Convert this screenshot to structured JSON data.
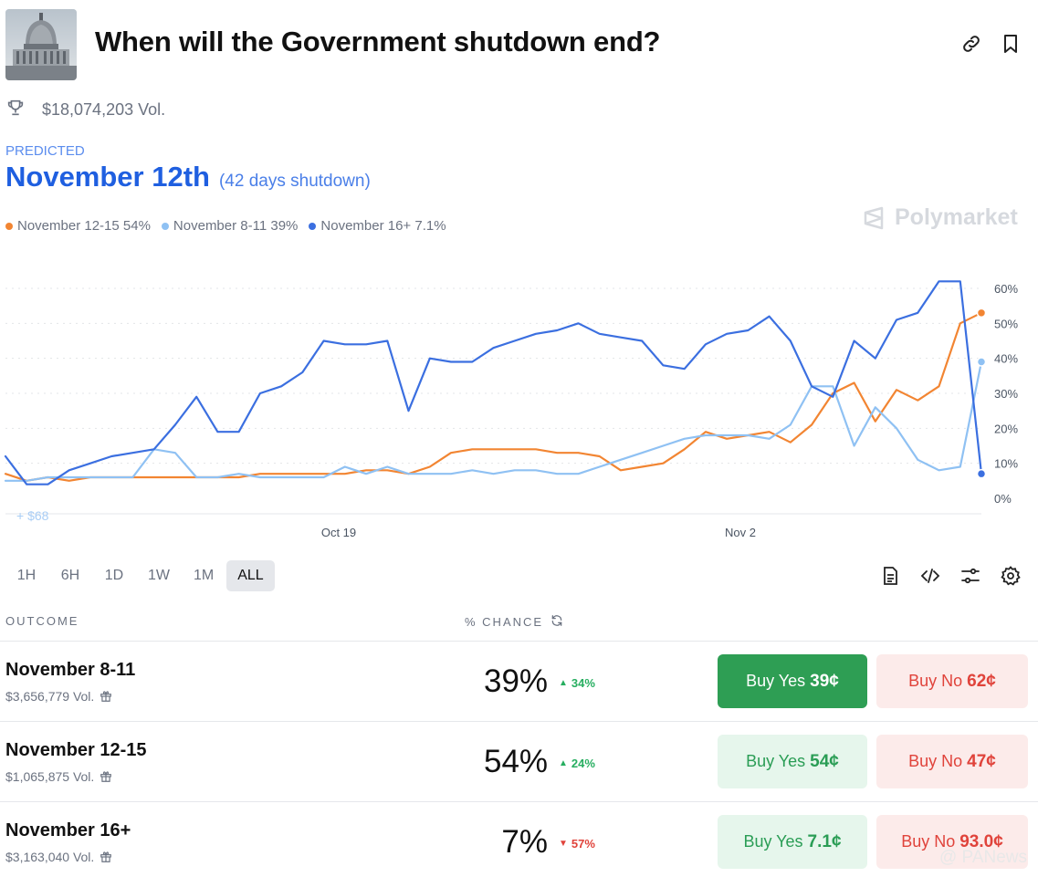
{
  "header": {
    "title": "When will the Government shutdown end?",
    "volume": "$18,074,203 Vol."
  },
  "prediction": {
    "label": "PREDICTED",
    "value": "November 12th",
    "subtitle": "(42 days shutdown)"
  },
  "brand": "Polymarket",
  "legend": [
    {
      "label": "November 12-15 54%",
      "color": "#f28532"
    },
    {
      "label": "November 8-11 39%",
      "color": "#8fc1f3"
    },
    {
      "label": "November 16+ 7.1%",
      "color": "#3b6fe0"
    }
  ],
  "chart_data": {
    "type": "line",
    "x_ticks": [
      "Oct 19",
      "Nov 2"
    ],
    "y_ticks": [
      "60%",
      "50%",
      "40%",
      "30%",
      "20%",
      "10%",
      "0%"
    ],
    "ylim": [
      0,
      60
    ],
    "grid": true,
    "annotation": "+ $68",
    "series": [
      {
        "name": "November 12-15",
        "color": "#f28532",
        "values": [
          7,
          5,
          6,
          5,
          6,
          6,
          6,
          6,
          6,
          6,
          6,
          6,
          7,
          7,
          7,
          7,
          7,
          8,
          8,
          7,
          9,
          13,
          14,
          14,
          14,
          14,
          13,
          13,
          12,
          8,
          9,
          10,
          14,
          19,
          17,
          18,
          19,
          16,
          21,
          30,
          33,
          22,
          31,
          28,
          32,
          50,
          53
        ]
      },
      {
        "name": "November 8-11",
        "color": "#8fc1f3",
        "values": [
          5,
          5,
          6,
          6,
          6,
          6,
          6,
          14,
          13,
          6,
          6,
          7,
          6,
          6,
          6,
          6,
          9,
          7,
          9,
          7,
          7,
          7,
          8,
          7,
          8,
          8,
          7,
          7,
          9,
          11,
          13,
          15,
          17,
          18,
          18,
          18,
          17,
          21,
          32,
          32,
          15,
          26,
          20,
          11,
          8,
          9,
          39
        ]
      },
      {
        "name": "November 16+",
        "color": "#3b6fe0",
        "values": [
          12,
          4,
          4,
          8,
          10,
          12,
          13,
          14,
          21,
          29,
          19,
          19,
          30,
          32,
          36,
          45,
          44,
          44,
          45,
          25,
          40,
          39,
          39,
          43,
          45,
          47,
          48,
          50,
          47,
          46,
          45,
          38,
          37,
          44,
          47,
          48,
          52,
          45,
          32,
          29,
          45,
          40,
          51,
          53,
          62,
          62,
          7
        ]
      }
    ]
  },
  "timeframes": [
    "1H",
    "6H",
    "1D",
    "1W",
    "1M",
    "ALL"
  ],
  "active_timeframe": "ALL",
  "table": {
    "col_outcome": "OUTCOME",
    "col_chance": "% CHANCE",
    "rows": [
      {
        "name": "November 8-11",
        "volume": "$3,656,779 Vol.",
        "chance": "39%",
        "change": "34%",
        "direction": "up",
        "yes_label": "Buy Yes",
        "yes_price": "39¢",
        "no_label": "Buy No",
        "no_price": "62¢"
      },
      {
        "name": "November 12-15",
        "volume": "$1,065,875 Vol.",
        "chance": "54%",
        "change": "24%",
        "direction": "up",
        "yes_label": "Buy Yes",
        "yes_price": "54¢",
        "no_label": "Buy No",
        "no_price": "47¢"
      },
      {
        "name": "November 16+",
        "volume": "$3,163,040 Vol.",
        "chance": "7%",
        "change": "57%",
        "direction": "down",
        "yes_label": "Buy Yes",
        "yes_price": "7.1¢",
        "no_label": "Buy No",
        "no_price": "93.0¢"
      }
    ]
  },
  "corner_watermark": "@ PANews"
}
